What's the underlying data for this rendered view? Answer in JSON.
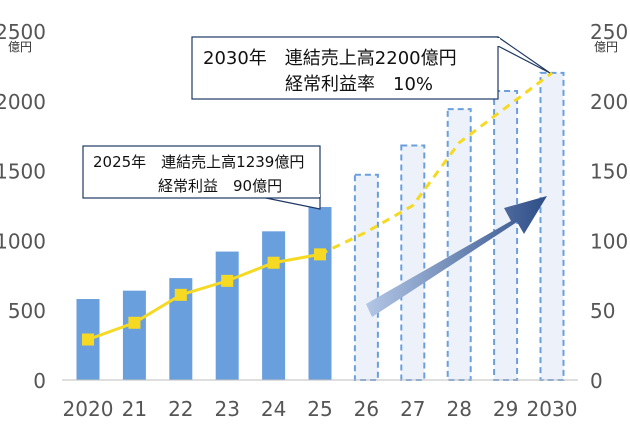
{
  "chart_data": {
    "type": "bar",
    "categories": [
      "2020",
      "21",
      "22",
      "23",
      "24",
      "25",
      "26",
      "27",
      "28",
      "29",
      "2030"
    ],
    "series": [
      {
        "type": "bar",
        "axis": "left",
        "values": [
          580,
          640,
          730,
          920,
          1065,
          1239,
          1470,
          1680,
          1940,
          2070,
          2200
        ],
        "actual_count": 6,
        "color": "#6a9fde",
        "forecast_style": "dashed-outline",
        "forecast_fill": "#edf2fa"
      },
      {
        "type": "line",
        "axis": "right",
        "values": [
          29,
          41,
          61,
          71,
          84,
          90,
          106,
          125,
          170,
          195,
          220
        ],
        "actual_count": 6,
        "color": "#f5d922",
        "forecast_style": "dashed"
      }
    ],
    "y_left": {
      "unit": "億円",
      "ylim": [
        0,
        2500
      ],
      "ticks": [
        "0",
        "500",
        "1000",
        "1500",
        "2000",
        "2500"
      ]
    },
    "y_right": {
      "unit": "億円",
      "ylim": [
        0,
        250
      ],
      "ticks": [
        "0",
        "50",
        "100",
        "150",
        "200",
        "250"
      ]
    },
    "grid": false,
    "callouts": [
      {
        "name": "callout-2025",
        "lines": [
          "2025年　連結売上高1239億円",
          "経常利益　90億円"
        ],
        "points_to": "25"
      },
      {
        "name": "callout-2030",
        "lines": [
          "2030年　連結売上高2200億円",
          "経常利益率　10%"
        ],
        "points_to": "2030"
      }
    ],
    "trend_arrow": true
  }
}
